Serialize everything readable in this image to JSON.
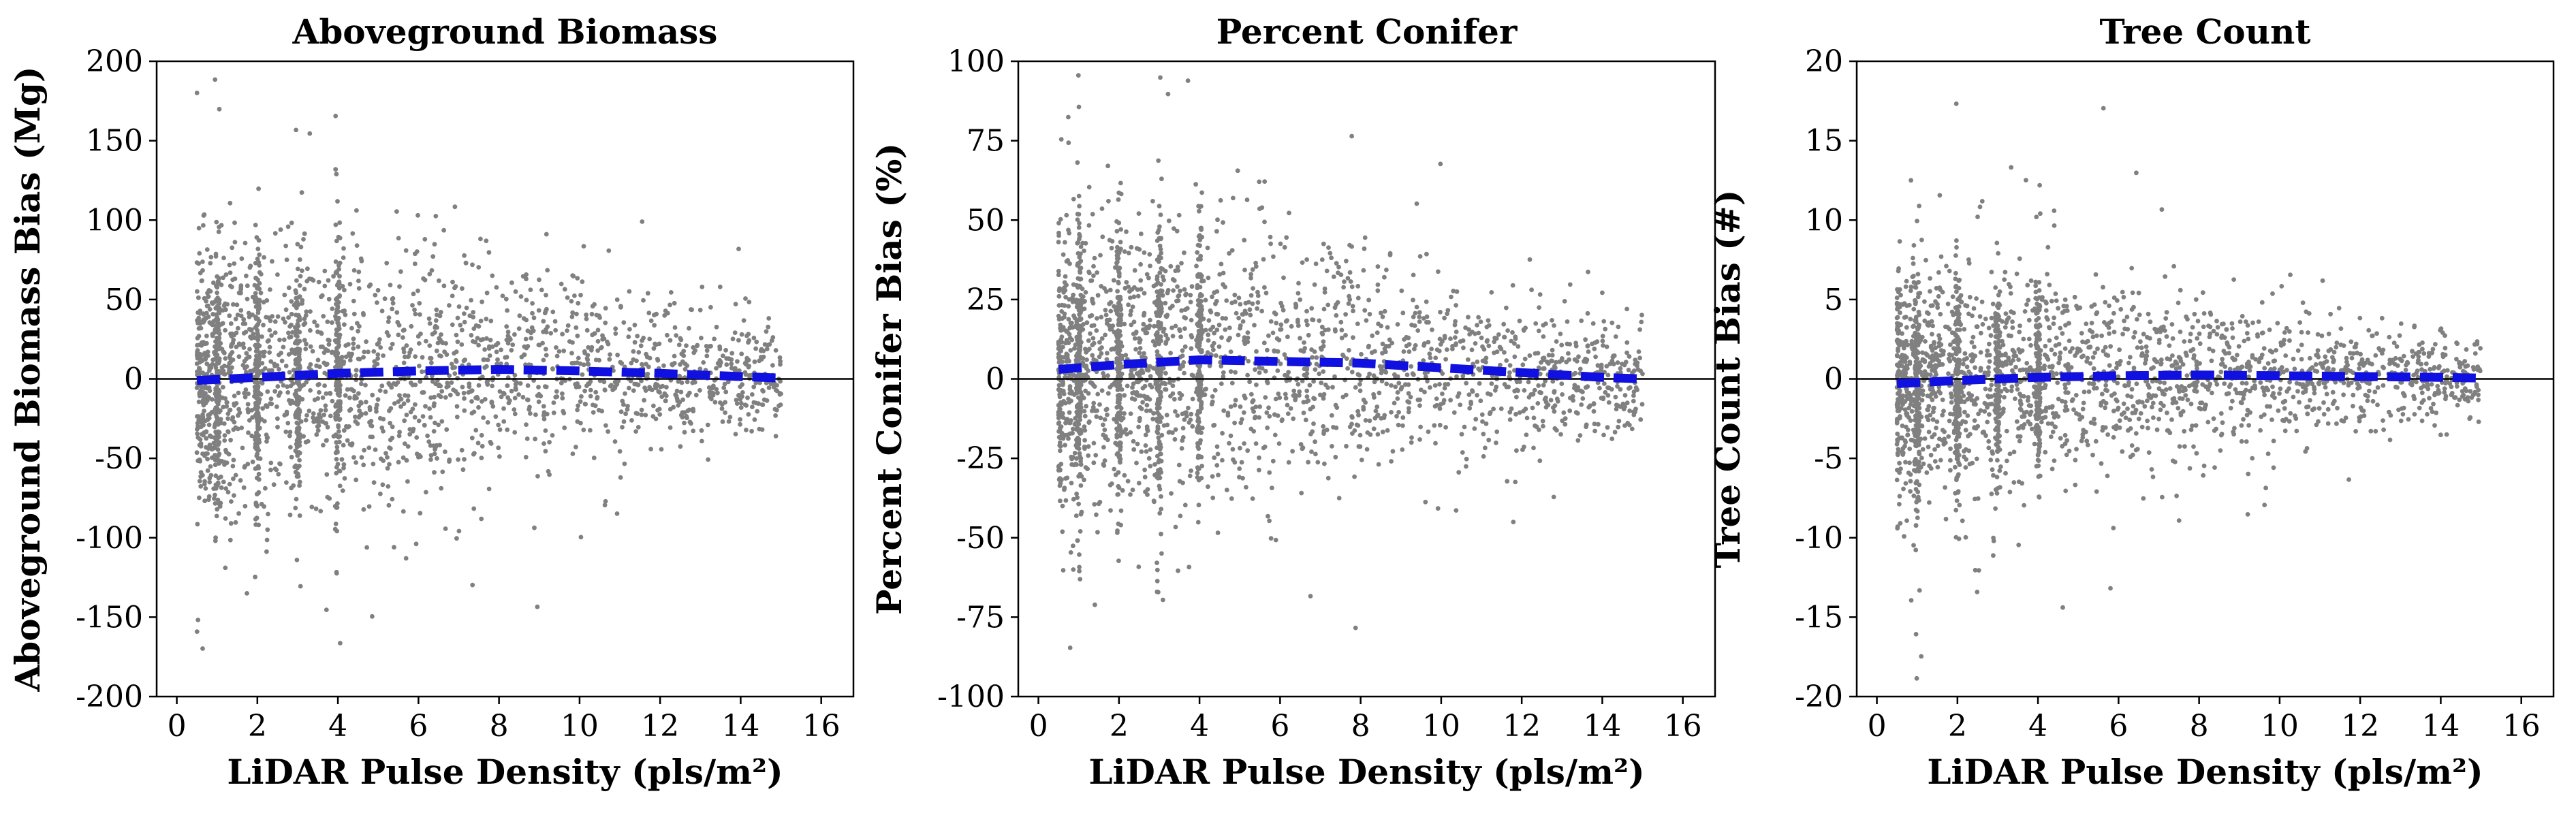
{
  "figure": {
    "colors": {
      "scatter": "#808080",
      "trend": "#1010e0",
      "zero_line": "#000000",
      "axis": "#000000"
    }
  },
  "chart_data": [
    {
      "type": "scatter",
      "title": "Aboveground Biomass",
      "xlabel": "LiDAR Pulse Density (pls/m²)",
      "ylabel": "Aboveground Biomass Bias (Mg)",
      "xlim": [
        -0.5,
        16.8
      ],
      "ylim": [
        -200,
        200
      ],
      "xticks": [
        0,
        2,
        4,
        6,
        8,
        10,
        12,
        14,
        16
      ],
      "yticks": [
        -200,
        -150,
        -100,
        -50,
        0,
        50,
        100,
        150,
        200
      ],
      "reference_line_y": 0,
      "scatter_summary": {
        "n_points": 2600,
        "x_range": [
          0.5,
          15
        ],
        "spread_sd_by_x": [
          [
            0.5,
            40
          ],
          [
            4,
            42
          ],
          [
            8,
            32
          ],
          [
            12,
            22
          ],
          [
            15,
            16
          ]
        ],
        "dense_vertical_bands_x": [
          1,
          2,
          3,
          4
        ]
      },
      "trend_line": {
        "style": "dashed",
        "x": [
          0.5,
          2,
          4,
          6,
          8,
          10,
          12,
          14,
          15
        ],
        "y": [
          -1,
          1,
          3.5,
          5,
          6,
          5,
          3.5,
          1.5,
          0.5
        ]
      }
    },
    {
      "type": "scatter",
      "title": "Percent Conifer",
      "xlabel": "LiDAR Pulse Density (pls/m²)",
      "ylabel": "Percent Conifer Bias (%)",
      "xlim": [
        -0.5,
        16.8
      ],
      "ylim": [
        -100,
        100
      ],
      "xticks": [
        0,
        2,
        4,
        6,
        8,
        10,
        12,
        14,
        16
      ],
      "yticks": [
        -100,
        -75,
        -50,
        -25,
        0,
        25,
        50,
        75,
        100
      ],
      "reference_line_y": 0,
      "scatter_summary": {
        "n_points": 2600,
        "x_range": [
          0.5,
          15
        ],
        "spread_sd_by_x": [
          [
            0.5,
            22
          ],
          [
            4,
            22
          ],
          [
            8,
            18
          ],
          [
            12,
            12
          ],
          [
            15,
            9
          ]
        ],
        "dense_vertical_bands_x": [
          1,
          2,
          3,
          4
        ]
      },
      "trend_line": {
        "style": "dashed",
        "x": [
          0.5,
          2,
          4,
          6,
          8,
          10,
          12,
          14,
          15
        ],
        "y": [
          3,
          4.5,
          6,
          5.5,
          5,
          3.5,
          2,
          0.5,
          0
        ]
      }
    },
    {
      "type": "scatter",
      "title": "Tree Count",
      "xlabel": "LiDAR Pulse Density (pls/m²)",
      "ylabel": "Tree Count Bias (#)",
      "xlim": [
        -0.5,
        16.8
      ],
      "ylim": [
        -20,
        20
      ],
      "xticks": [
        0,
        2,
        4,
        6,
        8,
        10,
        12,
        14,
        16
      ],
      "yticks": [
        -20,
        -15,
        -10,
        -5,
        0,
        5,
        10,
        15,
        20
      ],
      "reference_line_y": 0,
      "scatter_summary": {
        "n_points": 2600,
        "x_range": [
          0.5,
          15
        ],
        "spread_sd_by_x": [
          [
            0.5,
            3.5
          ],
          [
            4,
            3.2
          ],
          [
            8,
            2.3
          ],
          [
            12,
            1.6
          ],
          [
            15,
            1.1
          ]
        ],
        "dense_vertical_bands_x": [
          1,
          2,
          3,
          4
        ]
      },
      "trend_line": {
        "style": "dashed",
        "x": [
          0.5,
          2,
          4,
          6,
          8,
          10,
          12,
          14,
          15
        ],
        "y": [
          -0.3,
          -0.1,
          0.1,
          0.2,
          0.25,
          0.2,
          0.15,
          0.1,
          0.05
        ]
      }
    }
  ]
}
